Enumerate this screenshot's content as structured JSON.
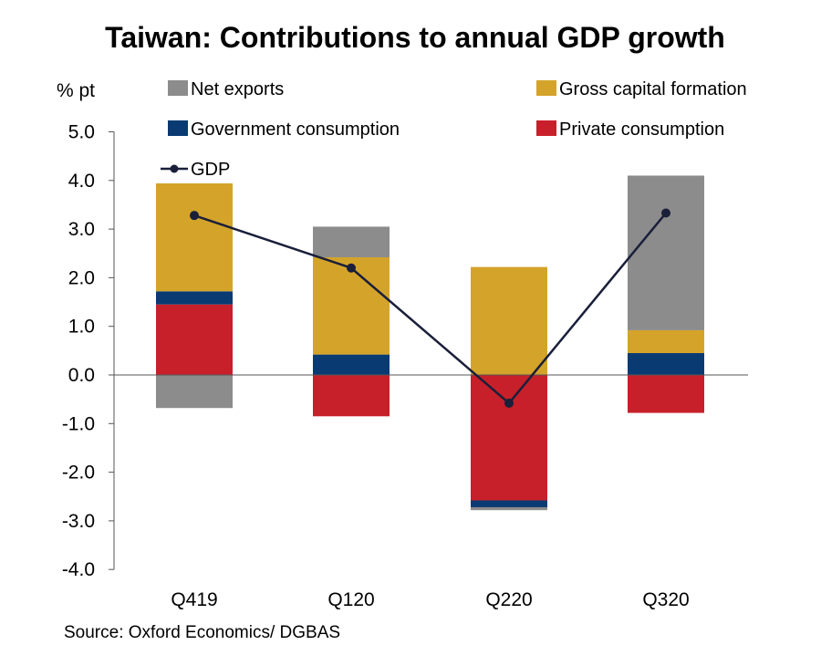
{
  "chart_data": {
    "type": "bar",
    "title": "Taiwan: Contributions to annual GDP growth",
    "ylabel": "% pt",
    "source": "Source: Oxford Economics/ DGBAS",
    "ylim": [
      -4.0,
      5.0
    ],
    "yticks": [
      "5.0",
      "4.0",
      "3.0",
      "2.0",
      "1.0",
      "0.0",
      "-1.0",
      "-2.0",
      "-3.0",
      "-4.0"
    ],
    "ytick_values": [
      5,
      4,
      3,
      2,
      1,
      0,
      -1,
      -2,
      -3,
      -4
    ],
    "categories": [
      "Q419",
      "Q120",
      "Q220",
      "Q320"
    ],
    "legend_placement": "top",
    "grid": false,
    "series": [
      {
        "name": "Private consumption",
        "type": "bar",
        "color": "#c8202a",
        "values": [
          1.45,
          -0.85,
          -2.58,
          -0.78
        ]
      },
      {
        "name": "Government consumption",
        "type": "bar",
        "color": "#0a3a72",
        "values": [
          0.27,
          0.42,
          -0.14,
          0.45
        ]
      },
      {
        "name": "Gross capital formation",
        "type": "bar",
        "color": "#d4a42a",
        "values": [
          2.22,
          2.0,
          2.22,
          0.47
        ]
      },
      {
        "name": "Net exports",
        "type": "bar",
        "color": "#8c8c8c",
        "values": [
          -0.68,
          0.63,
          -0.06,
          3.18
        ]
      },
      {
        "name": "GDP",
        "type": "line",
        "color": "#1a1f3a",
        "values": [
          3.28,
          2.2,
          -0.58,
          3.33
        ]
      }
    ],
    "legend_order": [
      "Net exports",
      "Gross capital formation",
      "Government consumption",
      "Private consumption",
      "GDP"
    ]
  }
}
